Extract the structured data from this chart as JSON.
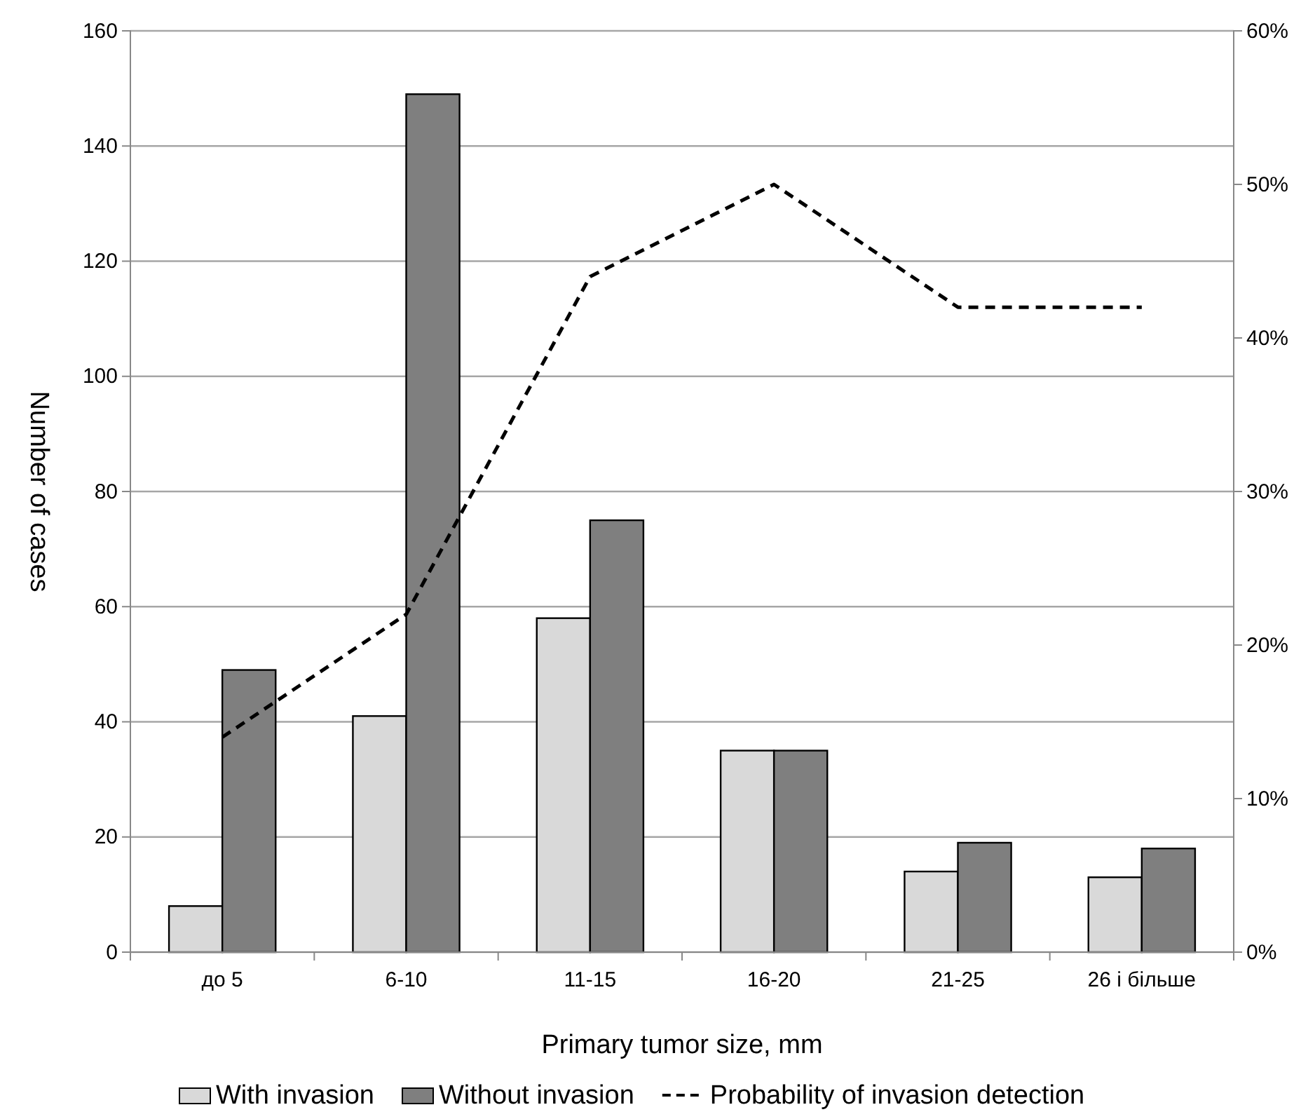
{
  "chart_data": {
    "type": "bar",
    "xlabel": "Primary tumor size, mm",
    "ylabel": "Number of cases",
    "categories": [
      "до 5",
      "6-10",
      "11-15",
      "16-20",
      "21-25",
      "26 і більше"
    ],
    "series": [
      {
        "name": "With invasion",
        "color": "#d9d9d9",
        "values": [
          8,
          41,
          58,
          35,
          14,
          13
        ]
      },
      {
        "name": "Without invasion",
        "color": "#7f7f7f",
        "values": [
          49,
          149,
          75,
          35,
          19,
          18
        ]
      },
      {
        "name": "Probability of invasion detection",
        "type": "line",
        "axis": "y2",
        "color": "#000000",
        "line_style": "dashed",
        "values": [
          14,
          22,
          44,
          50,
          42,
          42
        ]
      }
    ],
    "ylim": [
      0,
      160
    ],
    "yticks": [
      0,
      20,
      40,
      60,
      80,
      100,
      120,
      140,
      160
    ],
    "y2lim": [
      0,
      60
    ],
    "y2ticks": [
      {
        "value": 0,
        "label": "0%"
      },
      {
        "value": 10,
        "label": "10%"
      },
      {
        "value": 20,
        "label": "20%"
      },
      {
        "value": 30,
        "label": "30%"
      },
      {
        "value": 40,
        "label": "40%"
      },
      {
        "value": 50,
        "label": "50%"
      },
      {
        "value": 60,
        "label": "60%"
      }
    ],
    "grid": "y",
    "legend": "bottom"
  }
}
